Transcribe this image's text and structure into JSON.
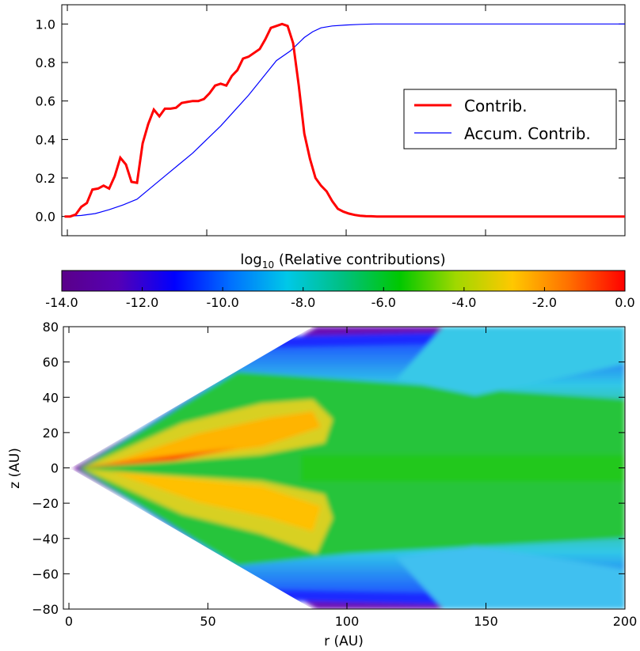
{
  "chart_data": [
    {
      "type": "line",
      "title": "",
      "xlabel": "",
      "ylabel": "",
      "xlim": [
        -2,
        200
      ],
      "ylim": [
        -0.1,
        1.1
      ],
      "yticks": [
        "0.0",
        "0.2",
        "0.4",
        "0.6",
        "0.8",
        "1.0"
      ],
      "xtick_values": [
        0,
        50,
        100,
        150,
        200
      ],
      "grid": false,
      "legend_position": "center-right",
      "series": [
        {
          "name": "Contrib.",
          "color": "#ff0000",
          "x": [
            -1,
            1,
            3,
            5,
            7,
            9,
            11,
            13,
            15,
            17,
            19,
            21,
            23,
            25,
            27,
            29,
            31,
            33,
            35,
            37,
            39,
            41,
            43,
            45,
            47,
            49,
            51,
            53,
            55,
            57,
            59,
            61,
            63,
            65,
            67,
            69,
            71,
            73,
            75,
            77,
            79,
            81,
            83,
            85,
            87,
            89,
            91,
            93,
            95,
            97,
            99,
            101,
            103,
            105,
            107,
            109,
            111,
            113,
            115,
            117,
            120,
            130,
            200
          ],
          "y": [
            0.0,
            0.0,
            0.01,
            0.05,
            0.07,
            0.14,
            0.145,
            0.16,
            0.145,
            0.21,
            0.305,
            0.27,
            0.18,
            0.175,
            0.38,
            0.48,
            0.555,
            0.52,
            0.56,
            0.56,
            0.565,
            0.59,
            0.595,
            0.6,
            0.6,
            0.61,
            0.64,
            0.68,
            0.69,
            0.68,
            0.73,
            0.76,
            0.82,
            0.83,
            0.85,
            0.87,
            0.92,
            0.98,
            0.99,
            1.0,
            0.99,
            0.9,
            0.68,
            0.43,
            0.3,
            0.2,
            0.16,
            0.13,
            0.08,
            0.04,
            0.025,
            0.015,
            0.008,
            0.004,
            0.002,
            0.001,
            0.0,
            0.0,
            0.0,
            0.0,
            0.0,
            0.0,
            0.0
          ]
        },
        {
          "name": "Accum. Contrib.",
          "color": "#0000ff",
          "x": [
            -1,
            5,
            10,
            15,
            20,
            25,
            30,
            35,
            40,
            45,
            50,
            55,
            60,
            65,
            70,
            75,
            80,
            85,
            88,
            91,
            95,
            100,
            105,
            110,
            115,
            120,
            130,
            200
          ],
          "y": [
            0.0,
            0.005,
            0.015,
            0.035,
            0.06,
            0.09,
            0.15,
            0.21,
            0.27,
            0.33,
            0.4,
            0.47,
            0.55,
            0.63,
            0.72,
            0.81,
            0.86,
            0.93,
            0.96,
            0.98,
            0.99,
            0.995,
            0.998,
            1.0,
            1.0,
            1.0,
            1.0,
            1.0
          ]
        }
      ]
    },
    {
      "type": "colorbar",
      "title": "log",
      "title_sub": "10",
      "title_rest": " (Relative contributions)",
      "range": [
        -14.0,
        0.0
      ],
      "ticks": [
        "-14.0",
        "-12.0",
        "-10.0",
        "-8.0",
        "-6.0",
        "-4.0",
        "-2.0",
        "0.0"
      ],
      "tick_values": [
        -14,
        -12,
        -10,
        -8,
        -6,
        -4,
        -2,
        0
      ],
      "colors": [
        "#5a0089",
        "#5500b5",
        "#0000ff",
        "#0070ff",
        "#00c8e8",
        "#00c080",
        "#00c800",
        "#a0d800",
        "#ffc800",
        "#ff7000",
        "#ff0000"
      ]
    },
    {
      "type": "heatmap",
      "title": "",
      "xlabel": "r (AU)",
      "ylabel": "z (AU)",
      "xlim": [
        -2,
        200
      ],
      "ylim": [
        -80,
        80
      ],
      "xticks": [
        "0",
        "50",
        "100",
        "150",
        "200"
      ],
      "xtick_values": [
        0,
        50,
        100,
        150,
        200
      ],
      "yticks": [
        "80",
        "60",
        "40",
        "20",
        "0",
        "−20",
        "−40",
        "−60",
        "−80"
      ],
      "ytick_values": [
        80,
        60,
        40,
        20,
        0,
        -20,
        -40,
        -60,
        -80
      ],
      "grid": false,
      "value_range": [
        -14,
        0
      ],
      "description_free": true
    }
  ]
}
